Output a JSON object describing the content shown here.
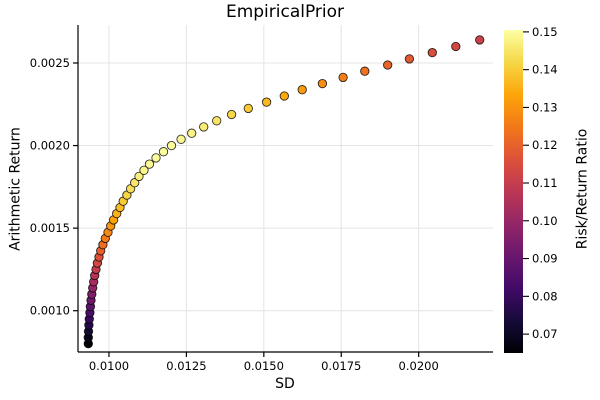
{
  "title": "EmpiricalPrior",
  "x_axis": {
    "label": "SD",
    "tick_labels": [
      "0.0100",
      "0.0125",
      "0.0150",
      "0.0175",
      "0.0200"
    ],
    "tick_values": [
      0.01,
      0.0125,
      0.015,
      0.0175,
      0.02
    ],
    "range": [
      0.009,
      0.0224
    ],
    "grid": true
  },
  "y_axis": {
    "label": "Arithmetic Return",
    "tick_labels": [
      "0.0010",
      "0.0015",
      "0.0020",
      "0.0025"
    ],
    "tick_values": [
      0.001,
      0.0015,
      0.002,
      0.0025
    ],
    "range": [
      0.00075,
      0.00273
    ],
    "grid": true
  },
  "colorbar": {
    "label": "Risk/Return Ratio",
    "tick_labels": [
      "0.07",
      "0.08",
      "0.09",
      "0.10",
      "0.11",
      "0.12",
      "0.13",
      "0.14",
      "0.15"
    ],
    "tick_values": [
      0.07,
      0.08,
      0.09,
      0.1,
      0.11,
      0.12,
      0.13,
      0.14,
      0.15
    ],
    "range": [
      0.065,
      0.1505
    ],
    "colormap": "inferno",
    "gradient_stops": [
      [
        0.0,
        "#000004"
      ],
      [
        0.1,
        "#160b39"
      ],
      [
        0.2,
        "#420a68"
      ],
      [
        0.3,
        "#6a176e"
      ],
      [
        0.4,
        "#932667"
      ],
      [
        0.5,
        "#bc3754"
      ],
      [
        0.6,
        "#dd513a"
      ],
      [
        0.7,
        "#f37819"
      ],
      [
        0.8,
        "#fca50a"
      ],
      [
        0.9,
        "#f6d746"
      ],
      [
        1.0,
        "#fcffa4"
      ]
    ]
  },
  "chart_data": {
    "type": "scatter",
    "title": "EmpiricalPrior",
    "xlabel": "SD",
    "ylabel": "Arithmetic Return",
    "color_label": "Risk/Return Ratio",
    "xlim": [
      0.009,
      0.0224
    ],
    "ylim": [
      0.00075,
      0.00273
    ],
    "legend_position": "none",
    "grid": true,
    "marker": {
      "shape": "circle",
      "radius_px": 4.2,
      "stroke": "rgba(0,0,0,0.8)"
    },
    "point_format": [
      "sd",
      "arithmetic_return",
      "risk_return_ratio"
    ],
    "points": [
      [
        0.009332,
        0.0008,
        0.0643
      ],
      [
        0.009332,
        0.000838,
        0.0684
      ],
      [
        0.00934,
        0.000875,
        0.0723
      ],
      [
        0.009352,
        0.000913,
        0.0762
      ],
      [
        0.009366,
        0.00095,
        0.0801
      ],
      [
        0.009385,
        0.000988,
        0.0839
      ],
      [
        0.0094,
        0.001025,
        0.0878
      ],
      [
        0.00942,
        0.001063,
        0.0916
      ],
      [
        0.009444,
        0.0011,
        0.0953
      ],
      [
        0.009474,
        0.001138,
        0.099
      ],
      [
        0.009506,
        0.001175,
        0.1026
      ],
      [
        0.00954,
        0.001213,
        0.1062
      ],
      [
        0.00958,
        0.00125,
        0.1096
      ],
      [
        0.009625,
        0.001288,
        0.113
      ],
      [
        0.009677,
        0.001325,
        0.1163
      ],
      [
        0.009732,
        0.001363,
        0.1195
      ],
      [
        0.009805,
        0.0014,
        0.1224
      ],
      [
        0.00988,
        0.001438,
        0.1253
      ],
      [
        0.009968,
        0.001475,
        0.1279
      ],
      [
        0.010055,
        0.001513,
        0.1306
      ],
      [
        0.01015,
        0.00155,
        0.133
      ],
      [
        0.010248,
        0.001588,
        0.1354
      ],
      [
        0.010355,
        0.001625,
        0.1376
      ],
      [
        0.01046,
        0.001663,
        0.1399
      ],
      [
        0.01058,
        0.0017,
        0.1418
      ],
      [
        0.0107,
        0.001738,
        0.1437
      ],
      [
        0.01083,
        0.001775,
        0.1454
      ],
      [
        0.01097,
        0.001813,
        0.147
      ],
      [
        0.01113,
        0.00185,
        0.1482
      ],
      [
        0.01131,
        0.001888,
        0.1492
      ],
      [
        0.01152,
        0.001925,
        0.1497
      ],
      [
        0.01176,
        0.001963,
        0.1499
      ],
      [
        0.01202,
        0.002,
        0.1497
      ],
      [
        0.01233,
        0.002038,
        0.149
      ],
      [
        0.01267,
        0.002075,
        0.148
      ],
      [
        0.01306,
        0.002113,
        0.1464
      ],
      [
        0.01348,
        0.00215,
        0.1447
      ],
      [
        0.01396,
        0.002188,
        0.1424
      ],
      [
        0.0145,
        0.002225,
        0.1397
      ],
      [
        0.01509,
        0.002263,
        0.1367
      ],
      [
        0.01566,
        0.0023,
        0.1341
      ],
      [
        0.01624,
        0.002338,
        0.1316
      ],
      [
        0.01689,
        0.002375,
        0.1288
      ],
      [
        0.01756,
        0.002413,
        0.126
      ],
      [
        0.01826,
        0.00245,
        0.1232
      ],
      [
        0.019,
        0.002488,
        0.1204
      ],
      [
        0.0197,
        0.002525,
        0.118
      ],
      [
        0.02044,
        0.002563,
        0.1156
      ],
      [
        0.0212,
        0.0026,
        0.1132
      ],
      [
        0.02197,
        0.00264,
        0.1111
      ]
    ]
  }
}
